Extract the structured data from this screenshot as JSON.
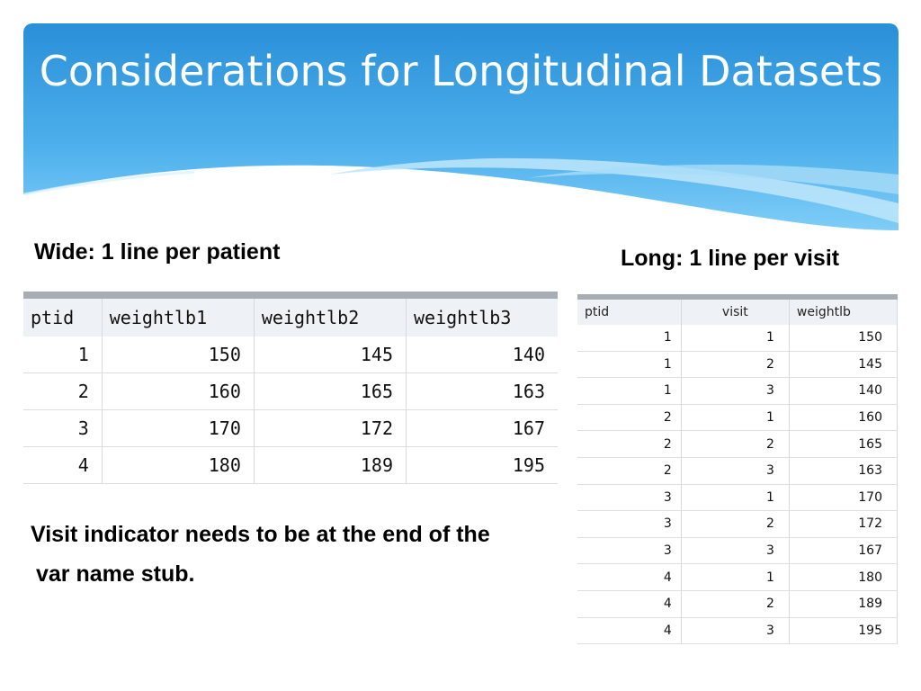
{
  "slide": {
    "title": "Considerations for Longitudinal Datasets",
    "colors": {
      "header_top": "#2a93db",
      "header_bottom": "#5fbaf0",
      "text": "#000000"
    },
    "wide_label": "Wide:  1 line per patient",
    "long_label": "Long:  1 line per visit",
    "note_line1": "Visit indicator needs to be at the end of the",
    "note_line2": "var name stub."
  },
  "wide_table": {
    "headers": [
      "ptid",
      "weightlb1",
      "weightlb2",
      "weightlb3"
    ],
    "rows": [
      [
        "1",
        "150",
        "145",
        "140"
      ],
      [
        "2",
        "160",
        "165",
        "163"
      ],
      [
        "3",
        "170",
        "172",
        "167"
      ],
      [
        "4",
        "180",
        "189",
        "195"
      ]
    ]
  },
  "long_table": {
    "headers": [
      "ptid",
      "visit",
      "weightlb"
    ],
    "rows": [
      [
        "1",
        "1",
        "150"
      ],
      [
        "1",
        "2",
        "145"
      ],
      [
        "1",
        "3",
        "140"
      ],
      [
        "2",
        "1",
        "160"
      ],
      [
        "2",
        "2",
        "165"
      ],
      [
        "2",
        "3",
        "163"
      ],
      [
        "3",
        "1",
        "170"
      ],
      [
        "3",
        "2",
        "172"
      ],
      [
        "3",
        "3",
        "167"
      ],
      [
        "4",
        "1",
        "180"
      ],
      [
        "4",
        "2",
        "189"
      ],
      [
        "4",
        "3",
        "195"
      ]
    ]
  }
}
